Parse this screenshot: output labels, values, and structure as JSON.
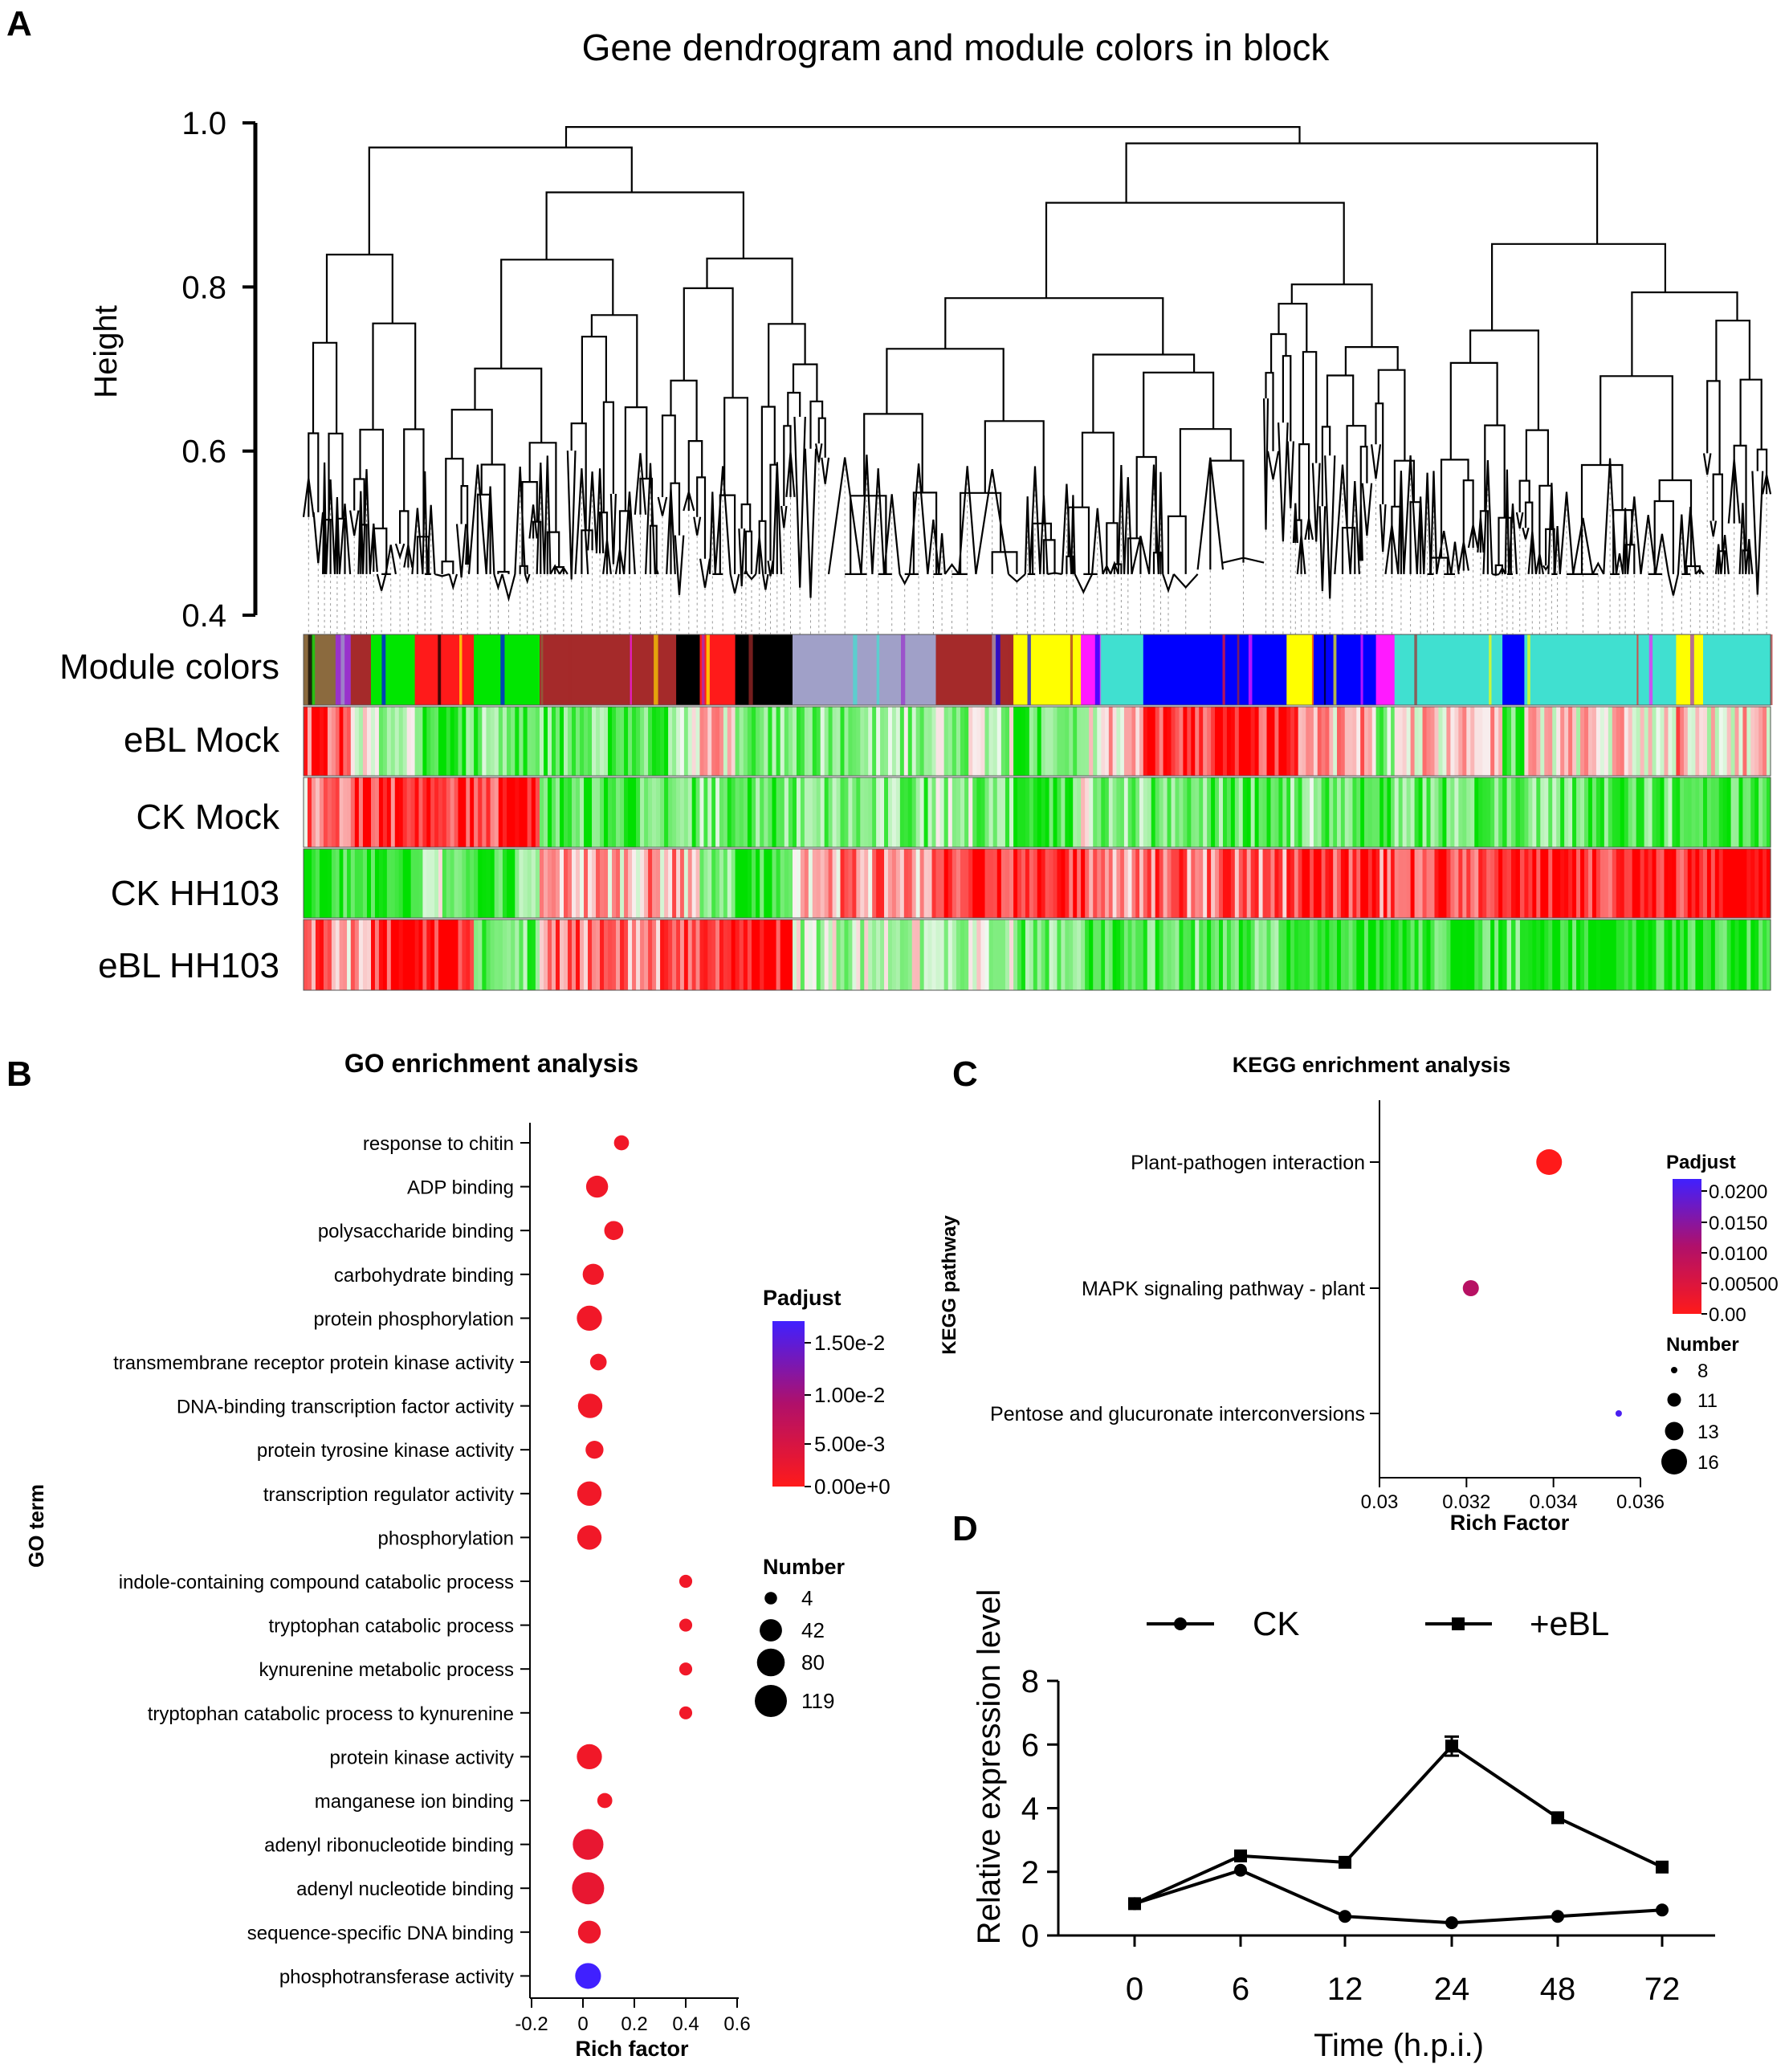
{
  "panels": {
    "a": "A",
    "b": "B",
    "c": "C",
    "d": "D"
  },
  "panel_a": {
    "title": "Gene dendrogram and module colors in block",
    "ylabel": "Height",
    "y_ticks": [
      "1.0",
      "0.8",
      "0.6",
      "0.4"
    ],
    "ylim": [
      0.4,
      1.0
    ],
    "row_labels": [
      "Module colors",
      "eBL Mock",
      "CK Mock",
      "CK HH103",
      "eBL HH103"
    ],
    "module_colors": [
      "#8B6A3E",
      "#9932CC",
      "#A52A2A",
      "#00E600",
      "#FF1A1A",
      "#00E600",
      "#A52A2A",
      "#000000",
      "#FF1A1A",
      "#000000",
      "#A0A0C8",
      "#FFD700",
      "#A52A2A",
      "#FFFF00",
      "#FF1AFF",
      "#40E0D0",
      "#0000FF",
      "#FFFF00",
      "#0000FF",
      "#FF1AFF",
      "#40E0D0",
      "#0000FF",
      "#40E0D0",
      "#FFFF00",
      "#40E0D0"
    ],
    "module_widths": [
      38,
      18,
      24,
      52,
      70,
      78,
      162,
      28,
      42,
      68,
      170,
      0,
      92,
      80,
      24,
      50,
      170,
      32,
      74,
      22,
      128,
      26,
      180,
      32,
      80
    ],
    "trait_patterns": [
      [
        0.7,
        0.6,
        0.1,
        -0.3,
        -0.7,
        -0.5,
        -0.6,
        -0.3,
        0.1,
        -0.5,
        -0.4,
        -0.6,
        -0.3,
        -0.7,
        -0.2,
        0.2,
        0.8,
        0.6,
        0.3,
        -0.4,
        0.2,
        -0.6,
        0.1,
        0.3,
        0.1
      ],
      [
        0.4,
        0.6,
        0.9,
        0.6,
        0.9,
        0.8,
        -0.7,
        -0.6,
        -0.5,
        -0.6,
        -0.5,
        -0.6,
        -0.4,
        -0.7,
        -0.2,
        -0.5,
        -0.6,
        -0.4,
        -0.7,
        -0.8,
        -0.6,
        -0.5,
        -0.6,
        -0.7,
        -0.7
      ],
      [
        -0.9,
        -0.9,
        -0.9,
        -0.9,
        -0.3,
        -0.6,
        0.3,
        0.2,
        -0.6,
        -0.9,
        0.4,
        0.6,
        0.9,
        0.9,
        0.7,
        0.3,
        0.5,
        0.7,
        0.8,
        0.6,
        0.8,
        0.9,
        0.9,
        0.9,
        0.9
      ],
      [
        0.5,
        0.4,
        0.5,
        0.9,
        0.9,
        -0.5,
        0.5,
        0.8,
        0.9,
        0.95,
        -0.2,
        -0.4,
        -0.2,
        -0.5,
        -0.6,
        -0.8,
        -0.6,
        -0.8,
        -0.9,
        -0.7,
        -0.8,
        -0.6,
        -0.9,
        -0.8,
        -0.9
      ]
    ]
  },
  "panel_b": {
    "title": "GO enrichment analysis",
    "ylabel": "GO term",
    "xlabel": "Rich factor",
    "x_ticks": [
      "-0.2",
      "0",
      "0.2",
      "0.4",
      "0.6"
    ],
    "legend_color_title": "Padjust",
    "legend_color_ticks": [
      "1.50e-2",
      "1.00e-2",
      "5.00e-3",
      "0.00e+0"
    ],
    "legend_size_title": "Number",
    "legend_size_values": [
      "4",
      "42",
      "80",
      "119"
    ],
    "colors": {
      "low": "#FF1A1A",
      "mid": "#8B1A9A",
      "high": "#4020FF"
    }
  },
  "panel_c": {
    "title": "KEGG enrichment analysis",
    "ylabel": "KEGG pathway",
    "xlabel": "Rich Factor",
    "x_ticks": [
      "0.03",
      "0.032",
      "0.034",
      "0.036"
    ],
    "legend_color_title": "Padjust",
    "legend_color_ticks": [
      "0.0200",
      "0.0150",
      "0.0100",
      "0.00500",
      "0.00"
    ],
    "legend_size_title": "Number",
    "legend_size_values": [
      "8",
      "11",
      "13",
      "16"
    ]
  },
  "panel_d": {
    "ylabel": "Relative expression level",
    "xlabel": "Time (h.p.i.)",
    "legend": [
      "CK",
      "+eBL"
    ]
  },
  "chart_data": [
    {
      "type": "scatter",
      "title": "GO enrichment analysis",
      "xlabel": "Rich factor",
      "ylabel": "GO term",
      "xlim": [
        -0.2,
        0.6
      ],
      "size_legend": [
        4,
        42,
        80,
        119
      ],
      "color_range": [
        0,
        0.0175
      ],
      "categories": [
        "response to chitin",
        "ADP binding",
        "polysaccharide binding",
        "carbohydrate binding",
        "protein phosphorylation",
        "transmembrane receptor protein kinase activity",
        "DNA-binding transcription factor activity",
        "protein tyrosine kinase activity",
        "transcription regulator activity",
        "phosphorylation",
        "indole-containing compound catabolic process",
        "tryptophan catabolic process",
        "kynurenine metabolic process",
        "tryptophan catabolic process to kynurenine",
        "protein kinase activity",
        "manganese ion binding",
        "adenyl ribonucleotide binding",
        "adenyl nucleotide binding",
        "sequence-specific DNA binding",
        "phosphotransferase activity"
      ],
      "x": [
        0.15,
        0.055,
        0.12,
        0.04,
        0.025,
        0.06,
        0.028,
        0.045,
        0.025,
        0.025,
        0.4,
        0.4,
        0.4,
        0.4,
        0.025,
        0.085,
        0.02,
        0.02,
        0.025,
        0.02
      ],
      "size": [
        10,
        40,
        25,
        35,
        60,
        15,
        55,
        20,
        55,
        55,
        5,
        5,
        5,
        5,
        60,
        10,
        105,
        119,
        45,
        65
      ],
      "padjust": [
        0.0015,
        0.0015,
        0.0015,
        0.0015,
        0.0015,
        0.0015,
        0.0015,
        0.0015,
        0.0015,
        0.0015,
        0.0015,
        0.0015,
        0.0015,
        0.0015,
        0.0015,
        0.0015,
        0.0025,
        0.0025,
        0.002,
        0.0175
      ]
    },
    {
      "type": "scatter",
      "title": "KEGG enrichment analysis",
      "xlabel": "Rich Factor",
      "ylabel": "KEGG pathway",
      "xlim": [
        0.03,
        0.036
      ],
      "size_legend": [
        8,
        11,
        13,
        16
      ],
      "color_range": [
        0,
        0.022
      ],
      "categories": [
        "Plant-pathogen interaction",
        "MAPK signaling pathway - plant",
        "Pentose and glucuronate interconversions"
      ],
      "x": [
        0.0339,
        0.0321,
        0.0355
      ],
      "size": [
        16,
        12,
        8
      ],
      "padjust": [
        0.0,
        0.01,
        0.021
      ]
    },
    {
      "type": "line",
      "title": "",
      "xlabel": "Time (h.p.i.)",
      "ylabel": "Relative expression level",
      "categories": [
        "0",
        "6",
        "12",
        "24",
        "48",
        "72"
      ],
      "ylim": [
        0,
        8
      ],
      "y_ticks": [
        "0",
        "2",
        "4",
        "6",
        "8"
      ],
      "series": [
        {
          "name": "CK",
          "values": [
            1.0,
            2.05,
            0.6,
            0.4,
            0.6,
            0.8
          ]
        },
        {
          "name": "+eBL",
          "values": [
            1.0,
            2.5,
            2.3,
            5.95,
            3.7,
            2.15
          ],
          "error": [
            0,
            0,
            0,
            0.3,
            0,
            0
          ]
        }
      ]
    }
  ]
}
